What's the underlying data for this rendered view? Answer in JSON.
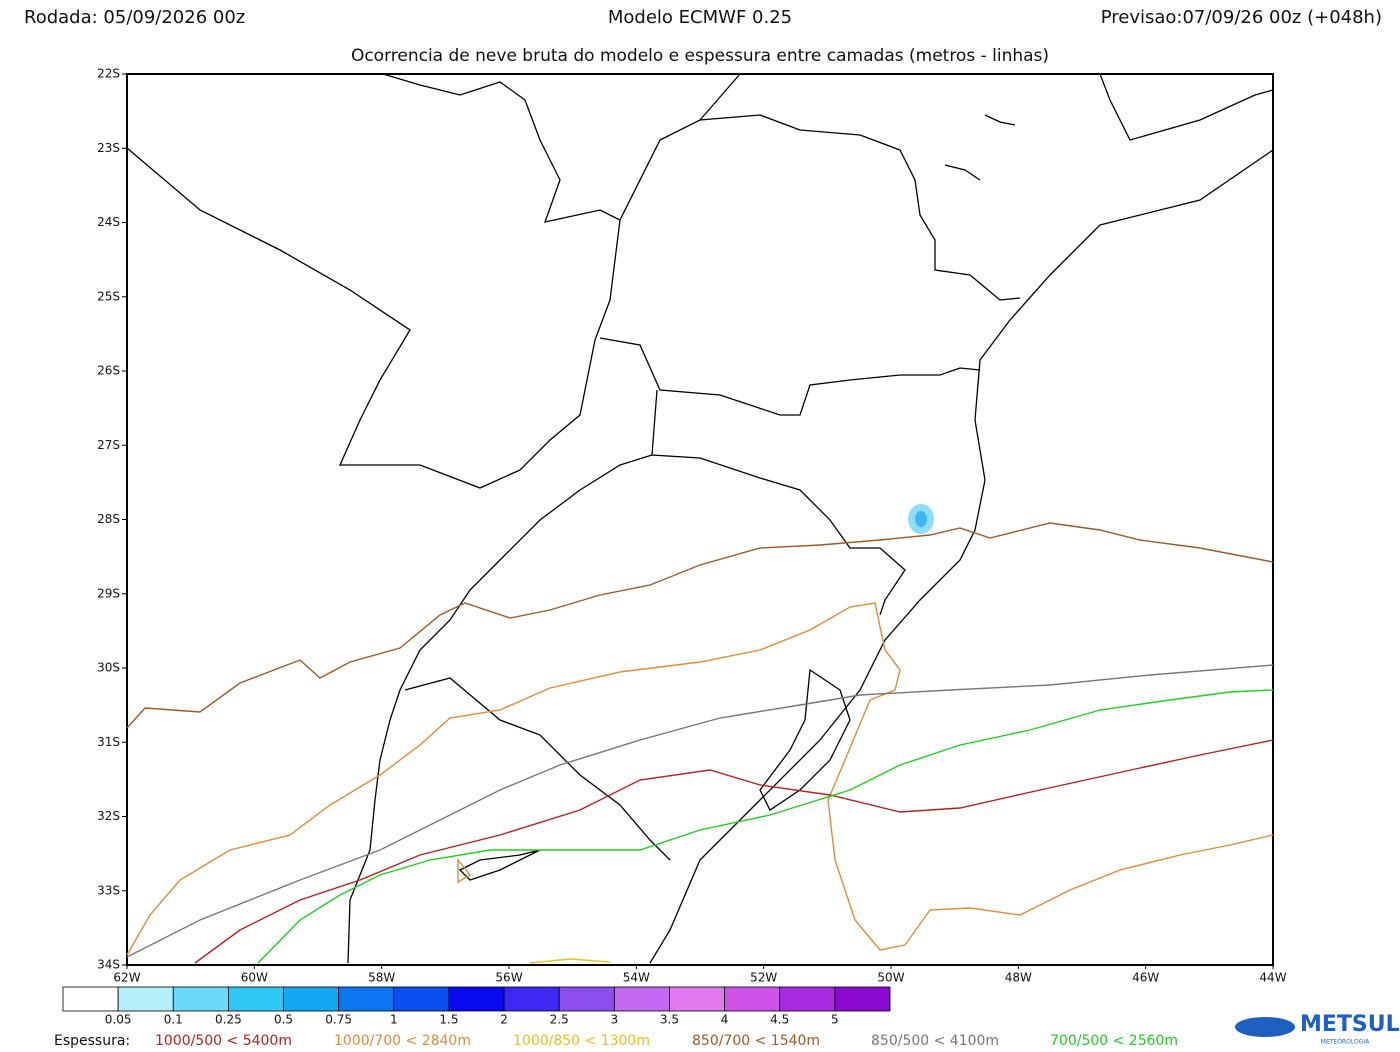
{
  "header": {
    "run": "Rodada: 05/09/2026 00z",
    "model": "Modelo ECMWF 0.25",
    "forecast": "Previsao:07/09/26 00z (+048h)",
    "subtitle": "Ocorrencia de neve bruta do modelo e espessura entre camadas (metros - linhas)"
  },
  "map": {
    "lat_labels": [
      "22S",
      "23S",
      "24S",
      "25S",
      "26S",
      "27S",
      "28S",
      "29S",
      "30S",
      "31S",
      "32S",
      "33S",
      "34S"
    ],
    "lon_labels": [
      "62W",
      "60W",
      "58W",
      "56W",
      "54W",
      "52W",
      "50W",
      "48W",
      "46W",
      "44W"
    ]
  },
  "colorbar": {
    "colors": [
      "#ffffff",
      "#b3f0fb",
      "#6dd9f8",
      "#2fc8f5",
      "#14a6f3",
      "#0b74f0",
      "#0a50f0",
      "#0a0af0",
      "#3e28f3",
      "#8b4ff0",
      "#c46af0",
      "#e07aee",
      "#cd52e8",
      "#a72ae0",
      "#8a0ad0"
    ],
    "labels": [
      "0.05",
      "0.1",
      "0.25",
      "0.5",
      "0.75",
      "1",
      "1.5",
      "2",
      "2.5",
      "3",
      "3.5",
      "4",
      "4.5",
      "5"
    ]
  },
  "legend": {
    "title": "Espessura:",
    "items": [
      {
        "label": "1000/500 < 5400m",
        "color": "#b22222"
      },
      {
        "label": "1000/700 < 2840m",
        "color": "#e08a3a"
      },
      {
        "label": "1000/850 < 1300m",
        "color": "#e8c020"
      },
      {
        "label": "850/700 < 1540m",
        "color": "#9c5a2a"
      },
      {
        "label": "850/500 < 4100m",
        "color": "#777777"
      },
      {
        "label": "700/500 < 2560m",
        "color": "#22cc22"
      }
    ]
  },
  "logo": {
    "name": "METSUL",
    "tagline": "METEOROLOGIA"
  }
}
